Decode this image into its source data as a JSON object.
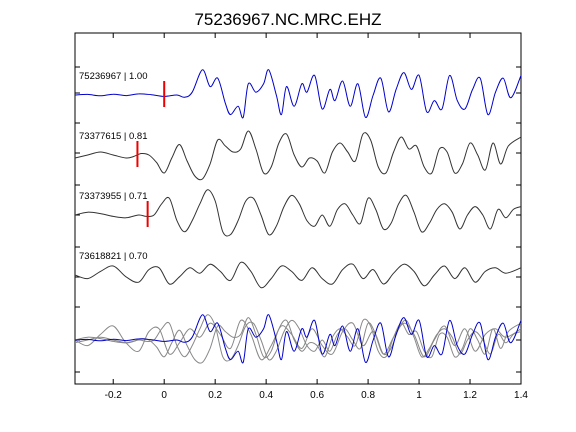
{
  "chart_data": {
    "type": "line",
    "title": "75236967.NC.MRC.EHZ",
    "xlabel": "",
    "ylabel": "",
    "xlim": [
      -0.35,
      1.4
    ],
    "xticks": [
      -0.2,
      0,
      0.2,
      0.4,
      0.6,
      0.8,
      1,
      1.2,
      1.4
    ],
    "xtick_labels": [
      "-0.2",
      "0",
      "0.2",
      "0.4",
      "0.6",
      "0.8",
      "1",
      "1.2",
      "1.4"
    ],
    "grid": false,
    "legend": "none",
    "series": [
      {
        "name": "75236967 | 1.00",
        "color": "#0000cc",
        "pick_time": 0.0,
        "x": [
          -0.35,
          -0.3,
          -0.25,
          -0.2,
          -0.15,
          -0.1,
          -0.05,
          0.0,
          0.05,
          0.08,
          0.11,
          0.15,
          0.18,
          0.21,
          0.24,
          0.26,
          0.29,
          0.31,
          0.33,
          0.36,
          0.39,
          0.41,
          0.44,
          0.46,
          0.48,
          0.51,
          0.54,
          0.56,
          0.59,
          0.62,
          0.65,
          0.67,
          0.7,
          0.73,
          0.76,
          0.79,
          0.82,
          0.85,
          0.88,
          0.91,
          0.94,
          0.97,
          1.0,
          1.03,
          1.06,
          1.09,
          1.12,
          1.15,
          1.18,
          1.21,
          1.24,
          1.27,
          1.3,
          1.33,
          1.36,
          1.4
        ],
        "y": [
          0.0,
          0.02,
          -0.03,
          0.03,
          -0.02,
          0.04,
          0.01,
          -0.05,
          0.0,
          -0.08,
          0.1,
          0.9,
          0.3,
          0.6,
          -0.3,
          -0.7,
          -0.4,
          -0.8,
          0.4,
          0.1,
          0.4,
          0.9,
          0.0,
          -0.7,
          0.3,
          -0.4,
          0.4,
          0.1,
          0.7,
          -0.5,
          0.2,
          -0.2,
          0.5,
          -0.4,
          0.4,
          -0.8,
          0.0,
          0.6,
          -0.6,
          0.2,
          0.8,
          0.2,
          0.7,
          -0.6,
          -0.2,
          -0.5,
          0.7,
          -0.2,
          -0.5,
          0.2,
          0.6,
          -0.7,
          0.1,
          0.6,
          -0.1,
          0.7
        ]
      },
      {
        "name": "73377615 | 0.81",
        "color": "#333333",
        "pick_time": -0.105,
        "x": [
          -0.35,
          -0.3,
          -0.25,
          -0.2,
          -0.15,
          -0.12,
          -0.09,
          -0.06,
          -0.03,
          0.0,
          0.03,
          0.06,
          0.09,
          0.12,
          0.15,
          0.18,
          0.21,
          0.24,
          0.27,
          0.3,
          0.33,
          0.36,
          0.39,
          0.42,
          0.45,
          0.48,
          0.51,
          0.54,
          0.57,
          0.6,
          0.63,
          0.66,
          0.69,
          0.72,
          0.75,
          0.78,
          0.81,
          0.84,
          0.87,
          0.9,
          0.93,
          0.96,
          0.99,
          1.02,
          1.05,
          1.08,
          1.11,
          1.14,
          1.17,
          1.2,
          1.23,
          1.26,
          1.29,
          1.32,
          1.35,
          1.4
        ],
        "y": [
          -0.1,
          0.0,
          0.1,
          0.0,
          -0.1,
          -0.05,
          0.05,
          0.0,
          -0.25,
          -0.6,
          -0.1,
          0.35,
          -0.2,
          -0.7,
          -0.8,
          -0.3,
          0.5,
          0.3,
          0.1,
          0.2,
          0.8,
          0.2,
          -0.6,
          -0.4,
          0.4,
          0.7,
          0.0,
          -0.4,
          -0.1,
          -0.2,
          -0.6,
          0.1,
          0.4,
          0.1,
          -0.2,
          0.7,
          0.5,
          -0.4,
          -0.6,
          0.1,
          0.6,
          0.2,
          0.3,
          -0.4,
          -0.6,
          0.2,
          0.1,
          -0.6,
          -0.3,
          0.4,
          0.0,
          -0.5,
          0.4,
          -0.3,
          0.3,
          0.6
        ]
      },
      {
        "name": "73373955 | 0.71",
        "color": "#333333",
        "pick_time": -0.065,
        "x": [
          -0.35,
          -0.3,
          -0.25,
          -0.2,
          -0.15,
          -0.1,
          -0.07,
          -0.04,
          -0.01,
          0.02,
          0.05,
          0.08,
          0.11,
          0.14,
          0.17,
          0.2,
          0.23,
          0.26,
          0.29,
          0.32,
          0.35,
          0.38,
          0.41,
          0.44,
          0.47,
          0.5,
          0.53,
          0.56,
          0.59,
          0.62,
          0.65,
          0.68,
          0.71,
          0.74,
          0.77,
          0.8,
          0.83,
          0.86,
          0.89,
          0.92,
          0.95,
          0.98,
          1.01,
          1.04,
          1.07,
          1.1,
          1.13,
          1.16,
          1.19,
          1.22,
          1.25,
          1.28,
          1.31,
          1.34,
          1.37,
          1.4
        ],
        "y": [
          0.0,
          0.1,
          0.05,
          -0.05,
          -0.1,
          0.0,
          -0.05,
          0.0,
          0.4,
          0.6,
          -0.2,
          -0.6,
          -0.2,
          0.4,
          0.9,
          0.5,
          -0.6,
          -0.7,
          -0.2,
          0.5,
          0.6,
          0.0,
          -0.7,
          -0.4,
          0.3,
          0.7,
          0.4,
          -0.2,
          -0.4,
          0.0,
          -0.4,
          0.2,
          0.4,
          0.0,
          -0.3,
          0.6,
          0.2,
          -0.5,
          -0.3,
          0.4,
          0.7,
          0.1,
          -0.6,
          -0.3,
          0.2,
          0.4,
          0.1,
          -0.5,
          0.0,
          0.3,
          0.0,
          -0.5,
          0.2,
          -0.1,
          0.2,
          0.3
        ]
      },
      {
        "name": "73618821 | 0.70",
        "color": "#333333",
        "pick_time": null,
        "x": [
          -0.35,
          -0.3,
          -0.25,
          -0.2,
          -0.15,
          -0.1,
          -0.06,
          -0.02,
          0.02,
          0.06,
          0.1,
          0.14,
          0.18,
          0.22,
          0.26,
          0.3,
          0.34,
          0.38,
          0.42,
          0.46,
          0.5,
          0.54,
          0.58,
          0.62,
          0.66,
          0.7,
          0.74,
          0.78,
          0.82,
          0.86,
          0.9,
          0.94,
          0.98,
          1.02,
          1.06,
          1.1,
          1.14,
          1.18,
          1.22,
          1.26,
          1.3,
          1.34,
          1.4
        ],
        "y": [
          0.0,
          -0.2,
          0.2,
          0.5,
          -0.1,
          -0.4,
          0.3,
          0.4,
          -0.5,
          -0.1,
          0.4,
          0.1,
          0.6,
          0.2,
          -0.3,
          0.7,
          0.2,
          -0.7,
          -0.2,
          0.5,
          0.2,
          -0.3,
          0.4,
          -0.2,
          -0.5,
          0.3,
          0.6,
          -0.2,
          0.3,
          -0.5,
          0.1,
          0.6,
          0.2,
          -0.6,
          0.0,
          0.5,
          -0.2,
          0.4,
          -0.4,
          0.2,
          0.4,
          0.1,
          0.4
        ]
      }
    ],
    "stacked_overlay": true
  }
}
